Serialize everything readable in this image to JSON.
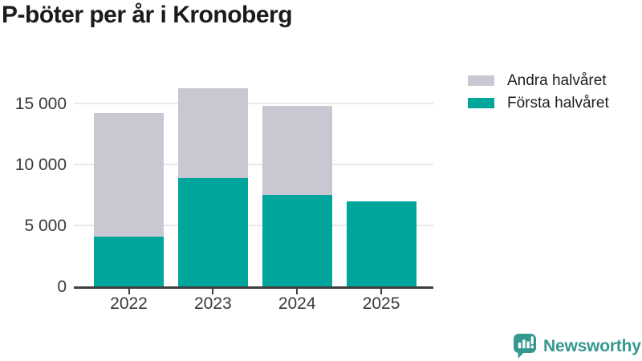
{
  "title": "P-böter per år i Kronoberg",
  "legend": {
    "items": [
      {
        "label": "Andra halvåret",
        "series": "second_half"
      },
      {
        "label": "Första halvåret",
        "series": "first_half"
      }
    ]
  },
  "footer": {
    "brand": "Newsworthy"
  },
  "colors": {
    "first_half": "#00a59b",
    "second_half": "#c9c7d1",
    "grid": "#e8e8e8",
    "axis": "#3f3f3f",
    "tick_text": "#3a3a3a",
    "title_text": "#1b1b1b",
    "legend_text": "#1f1f1f",
    "brand": "#35988f"
  },
  "chart_data": {
    "type": "bar",
    "stacked": true,
    "title": "P-böter per år i Kronoberg",
    "categories": [
      "2022",
      "2023",
      "2024",
      "2025"
    ],
    "series": [
      {
        "name": "Första halvåret",
        "color_key": "first_half",
        "values": [
          4100,
          8900,
          7500,
          7000
        ]
      },
      {
        "name": "Andra halvåret",
        "color_key": "second_half",
        "values": [
          10100,
          7400,
          7300,
          0
        ]
      }
    ],
    "totals": [
      14200,
      16300,
      14800,
      7000
    ],
    "xlabel": "",
    "ylabel": "",
    "ylim": [
      0,
      16600
    ],
    "yticks": [
      {
        "value": 0,
        "label": "0"
      },
      {
        "value": 5000,
        "label": "5 000"
      },
      {
        "value": 10000,
        "label": "10 000"
      },
      {
        "value": 15000,
        "label": "15 000"
      }
    ],
    "grid": true,
    "legend_position": "top-right"
  }
}
